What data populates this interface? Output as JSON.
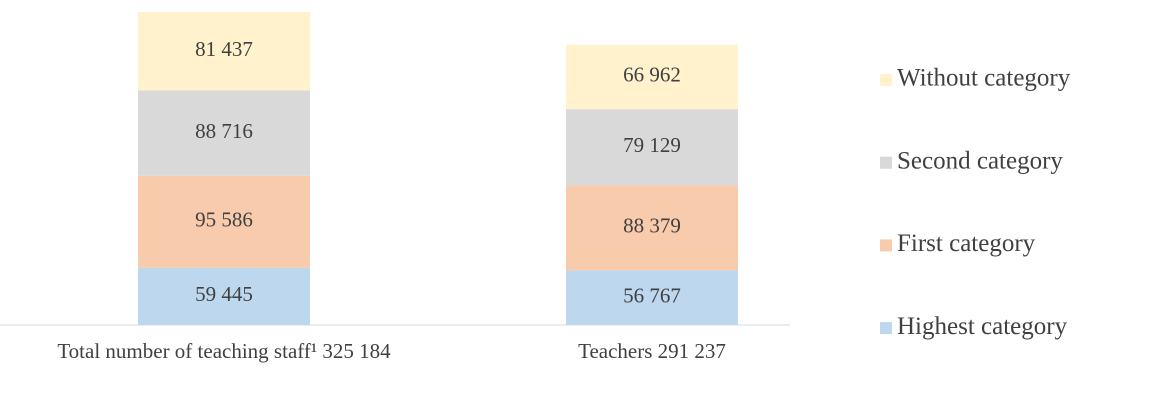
{
  "chart_data": {
    "type": "stacked_bar",
    "categories": [
      "Total number of teaching staff¹ 325 184",
      "Teachers 291 237"
    ],
    "series": [
      {
        "name": "Highest category",
        "color": "#bdd7ee",
        "values": [
          59445,
          56767
        ],
        "value_labels": [
          "59 445",
          "56 767"
        ]
      },
      {
        "name": "First category",
        "color": "#f8cbad",
        "values": [
          95586,
          88379
        ],
        "value_labels": [
          "95 586",
          "88 379"
        ]
      },
      {
        "name": "Second category",
        "color": "#d9d9d9",
        "values": [
          88716,
          79129
        ],
        "value_labels": [
          "88 716",
          "79 129"
        ]
      },
      {
        "name": "Without category",
        "color": "#fff2cc",
        "values": [
          81437,
          66962
        ],
        "value_labels": [
          "81 437",
          "66 962"
        ]
      }
    ],
    "legend": "right"
  }
}
